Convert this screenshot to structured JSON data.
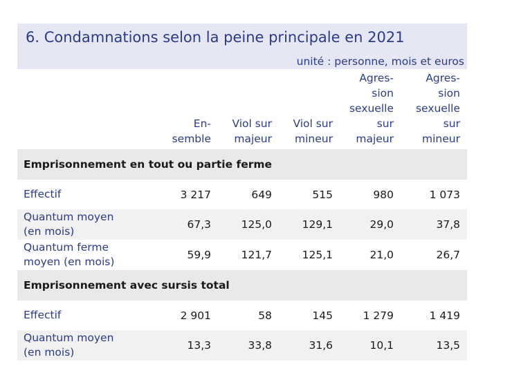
{
  "title": "6. Condamnations selon la peine principale en 2021",
  "unit": "unité : personne, mois et euros",
  "columns": [
    "En-\nsemble",
    "Viol sur\nmajeur",
    "Viol sur\nmineur",
    "Agres-\nsion\nsexuelle\nsur\nmajeur",
    "Agres-\nsion\nsexuelle\nsur\nmineur"
  ],
  "sections": [
    {
      "heading": "Emprisonnement en tout ou partie ferme",
      "rows": [
        {
          "label": "Effectif",
          "values": [
            "3 217",
            "649",
            "515",
            "980",
            "1 073"
          ]
        },
        {
          "label": "Quantum moyen\n(en mois)",
          "values": [
            "67,3",
            "125,0",
            "129,1",
            "29,0",
            "37,8"
          ]
        },
        {
          "label": "Quantum ferme\nmoyen (en mois)",
          "values": [
            "59,9",
            "121,7",
            "125,1",
            "21,0",
            "26,7"
          ]
        }
      ]
    },
    {
      "heading": "Emprisonnement avec sursis total",
      "rows": [
        {
          "label": "Effectif",
          "values": [
            "2 901",
            "58",
            "145",
            "1 279",
            "1 419"
          ]
        },
        {
          "label": "Quantum moyen\n(en mois)",
          "values": [
            "13,3",
            "33,8",
            "31,6",
            "10,1",
            "13,5"
          ]
        }
      ]
    }
  ]
}
